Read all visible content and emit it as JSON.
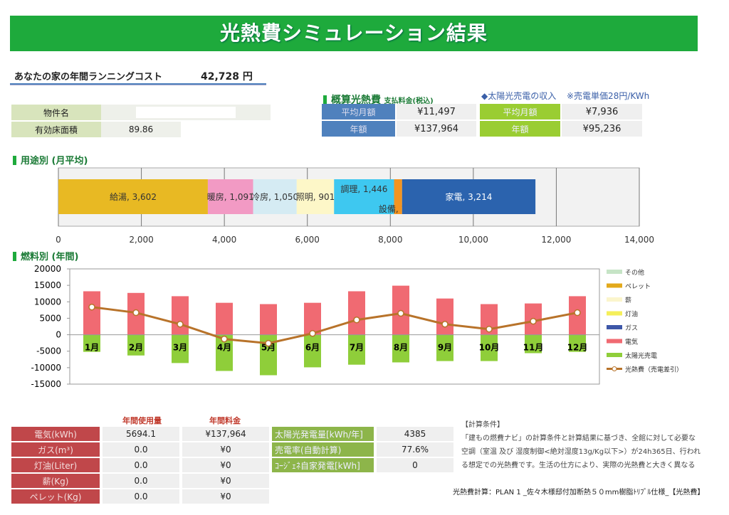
{
  "title": "光熱費シミュレーション結果",
  "running_cost": {
    "label": "あなたの家の年間ランニングコスト",
    "value": "42,728 円"
  },
  "property": {
    "name_label": "物件名",
    "name_value": "",
    "area_label": "有効床面積",
    "area_value": "89.86"
  },
  "estimate": {
    "heading": "概算光熱費",
    "sub": "支払料金(税込)",
    "monthly_label": "平均月額",
    "monthly": "¥11,497",
    "annual_label": "年額",
    "annual": "¥137,964"
  },
  "solar_income": {
    "heading": "◆太陽光売電の収入",
    "note": "※売電単価28円/KWh",
    "monthly_label": "平均月額",
    "monthly": "¥7,936",
    "annual_label": "年額",
    "annual": "¥95,236"
  },
  "colors": {
    "brand": "#1eaa3c",
    "blue": "#4f81bd",
    "green": "#9acd32",
    "red": "#c0474a"
  },
  "chart_data": [
    {
      "type": "bar",
      "orientation": "horizontal",
      "stacked": true,
      "title": "用途別 (月平均)",
      "series": [
        {
          "name": "給湯",
          "value": 3602,
          "color": "#e8b923"
        },
        {
          "name": "暖房",
          "value": 1091,
          "color": "#f29ac4"
        },
        {
          "name": "冷房",
          "value": 1050,
          "color": "#d5ebf3"
        },
        {
          "name": "照明",
          "value": 901,
          "color": "#fdf7c8"
        },
        {
          "name": "調理",
          "value": 1446,
          "color": "#3ec8f0"
        },
        {
          "name": "設備",
          "value": 193,
          "color": "#f39420"
        },
        {
          "name": "家電",
          "value": 3214,
          "color": "#2b63ae"
        }
      ],
      "xlim": [
        0,
        14000
      ],
      "xticks": [
        "0",
        "2,000",
        "4,000",
        "6,000",
        "8,000",
        "10,000",
        "12,000",
        "14,000"
      ],
      "grid": true
    },
    {
      "type": "bar",
      "stacked": true,
      "title": "燃料別 (年間)",
      "categories": [
        "1月",
        "2月",
        "3月",
        "4月",
        "5月",
        "6月",
        "7月",
        "8月",
        "9月",
        "10月",
        "11月",
        "12月"
      ],
      "series": [
        {
          "name": "その他",
          "color": "#c6e4c6",
          "values": [
            0,
            0,
            0,
            0,
            0,
            0,
            0,
            0,
            0,
            0,
            0,
            0
          ]
        },
        {
          "name": "ペレット",
          "color": "#e3a91b",
          "values": [
            0,
            0,
            0,
            0,
            0,
            0,
            0,
            0,
            0,
            0,
            0,
            0
          ]
        },
        {
          "name": "薪",
          "color": "#fbf5cc",
          "values": [
            0,
            0,
            0,
            0,
            0,
            0,
            0,
            0,
            0,
            0,
            0,
            0
          ]
        },
        {
          "name": "灯油",
          "color": "#f5ef5a",
          "values": [
            0,
            0,
            0,
            0,
            0,
            0,
            0,
            0,
            0,
            0,
            0,
            0
          ]
        },
        {
          "name": "ガス",
          "color": "#3e57a8",
          "values": [
            0,
            0,
            0,
            0,
            0,
            0,
            0,
            0,
            0,
            0,
            0,
            0
          ]
        },
        {
          "name": "電気",
          "color": "#f06a72",
          "values": [
            13200,
            12700,
            11700,
            9700,
            9300,
            9700,
            13200,
            14900,
            11000,
            9300,
            9500,
            11700
          ]
        },
        {
          "name": "太陽光売電",
          "color": "#8fce3a",
          "values": [
            -5200,
            -6300,
            -8600,
            -11000,
            -12300,
            -9900,
            -9100,
            -8400,
            -8000,
            -8000,
            -5600,
            -5200
          ]
        },
        {
          "name": "光熱費（売電差引）",
          "type": "line",
          "color": "#b8732a",
          "values": [
            8400,
            6700,
            3200,
            -1300,
            -2600,
            400,
            4500,
            6500,
            3200,
            1700,
            4100,
            6700
          ]
        }
      ],
      "ylim": [
        -15000,
        20000
      ],
      "yticks": [
        "20000",
        "15000",
        "10000",
        "5000",
        "0",
        "-5000",
        "-10000",
        "-15000"
      ],
      "legend": "right"
    }
  ],
  "usage": {
    "col_amount": "年間使用量",
    "col_cost": "年間料金",
    "rows": [
      {
        "label": "電気(kWh)",
        "amount": "5694.1",
        "cost": "¥137,964"
      },
      {
        "label": "ガス(m³)",
        "amount": "0.0",
        "cost": "¥0"
      },
      {
        "label": "灯油(Liter)",
        "amount": "0.0",
        "cost": "¥0"
      },
      {
        "label": "薪(Kg)",
        "amount": "0.0",
        "cost": "¥0"
      },
      {
        "label": "ペレット(Kg)",
        "amount": "0.0",
        "cost": "¥0"
      }
    ]
  },
  "solar": {
    "rows": [
      {
        "label": "太陽光発電量[kWh/年]",
        "value": "4385"
      },
      {
        "label": "売電率(自動計算)",
        "value": "77.6%"
      },
      {
        "label": "ｺｰｼﾞｪﾈ自家発電[kWh]",
        "value": "0"
      }
    ]
  },
  "conditions": {
    "heading": "【計算条件】",
    "lines": [
      "「建もの燃費ナビ」の計算条件と計算結果に基づき、全館に対して必要な",
      "空調（室温 及び 湿度制御<絶対湿度13g/Kg以下>）が24h365日、行われ",
      "る想定での光熱費です。生活の仕方により、実際の光熱費と大きく異なる"
    ]
  },
  "footer": "光熱費計算：PLAN 1 _佐々木様邸付加断熱５０mm樹脂ﾄﾘﾌﾟﾙ仕様_【光熱費】"
}
